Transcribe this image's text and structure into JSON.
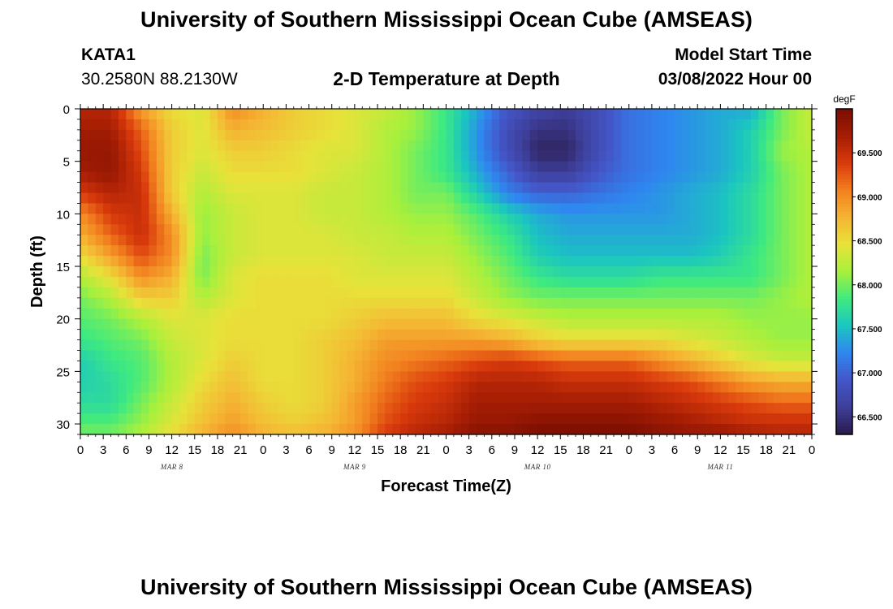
{
  "page": {
    "title": "University of Southern Mississippi Ocean Cube (AMSEAS)",
    "footer_title": "University of Southern Mississippi Ocean Cube (AMSEAS)",
    "station": "KATA1",
    "coords": "30.2580N  88.2130W",
    "subtitle": "2-D Temperature at Depth",
    "model_start_label": "Model Start Time",
    "model_start_value": "03/08/2022 Hour 00"
  },
  "chart_data": {
    "type": "heatmap",
    "title": "2-D Temperature at Depth",
    "xlabel": "Forecast Time(Z)",
    "ylabel": "Depth (ft)",
    "x_range_hours": [
      0,
      96
    ],
    "x_tick_labels": [
      "0",
      "3",
      "6",
      "9",
      "12",
      "15",
      "18",
      "21",
      "0",
      "3",
      "6",
      "9",
      "12",
      "15",
      "18",
      "21",
      "0",
      "3",
      "6",
      "9",
      "12",
      "15",
      "18",
      "21",
      "0",
      "3",
      "6",
      "9",
      "12",
      "15",
      "18",
      "21",
      "0"
    ],
    "date_labels": [
      {
        "label": "MAR 8",
        "hour": 12
      },
      {
        "label": "MAR 9",
        "hour": 36
      },
      {
        "label": "MAR 10",
        "hour": 60
      },
      {
        "label": "MAR 11",
        "hour": 84
      }
    ],
    "y_range_ft": [
      0,
      31
    ],
    "y_ticks": [
      0,
      5,
      10,
      15,
      20,
      25,
      30
    ],
    "colorbar": {
      "unit": "degF",
      "range": [
        66.3,
        70.0
      ],
      "ticks": [
        66.5,
        67.0,
        67.5,
        68.0,
        68.5,
        69.0,
        69.5
      ],
      "tick_labels": [
        "66.500",
        "67.000",
        "67.500",
        "68.000",
        "68.500",
        "69.000",
        "69.500"
      ],
      "colors": [
        "#2a1a4a",
        "#3e3f9a",
        "#4456c8",
        "#2f86f0",
        "#1bc6c0",
        "#3fea80",
        "#a8f03c",
        "#e8e23a",
        "#f5b533",
        "#f2801f",
        "#d93a0c",
        "#a51d04",
        "#7a0e02"
      ]
    },
    "grid_hours": [
      0,
      4,
      8,
      12,
      16,
      20,
      24,
      28,
      32,
      36,
      40,
      44,
      48,
      52,
      56,
      60,
      64,
      68,
      72,
      76,
      80,
      84,
      88,
      92,
      96
    ],
    "grid_depths_ft": [
      0,
      2,
      4,
      6,
      8,
      10,
      12,
      14,
      16,
      18,
      20,
      22,
      24,
      26,
      28,
      30,
      31
    ],
    "temperatures_degF": [
      [
        69.6,
        69.6,
        68.9,
        68.5,
        68.4,
        69.0,
        68.8,
        68.6,
        68.5,
        68.4,
        68.3,
        68.1,
        67.8,
        67.4,
        66.9,
        66.7,
        66.6,
        66.8,
        67.1,
        67.2,
        67.3,
        67.4,
        67.4,
        68.0,
        68.3
      ],
      [
        69.7,
        69.7,
        69.2,
        68.6,
        68.4,
        68.8,
        68.7,
        68.6,
        68.5,
        68.4,
        68.2,
        68.1,
        67.8,
        67.3,
        66.8,
        66.5,
        66.5,
        66.8,
        67.1,
        67.2,
        67.3,
        67.4,
        67.6,
        68.0,
        68.3
      ],
      [
        69.8,
        69.8,
        69.3,
        68.6,
        68.4,
        68.6,
        68.6,
        68.5,
        68.4,
        68.4,
        68.2,
        68.0,
        67.8,
        67.3,
        66.8,
        66.4,
        66.4,
        66.8,
        67.1,
        67.2,
        67.3,
        67.4,
        67.6,
        68.1,
        68.2
      ],
      [
        69.7,
        69.8,
        69.4,
        68.6,
        68.3,
        68.5,
        68.5,
        68.5,
        68.4,
        68.3,
        68.2,
        68.0,
        67.8,
        67.4,
        67.0,
        66.6,
        66.6,
        66.9,
        67.1,
        67.2,
        67.3,
        67.4,
        67.6,
        68.0,
        68.2
      ],
      [
        69.4,
        69.6,
        69.5,
        68.6,
        68.2,
        68.4,
        68.4,
        68.4,
        68.3,
        68.3,
        68.2,
        68.0,
        68.0,
        67.6,
        67.2,
        67.0,
        67.0,
        67.1,
        67.2,
        67.3,
        67.4,
        67.5,
        67.7,
        68.0,
        68.2
      ],
      [
        69.0,
        69.4,
        69.5,
        68.8,
        68.1,
        68.3,
        68.4,
        68.4,
        68.3,
        68.3,
        68.2,
        68.1,
        68.1,
        67.9,
        67.6,
        67.4,
        67.3,
        67.3,
        67.3,
        67.3,
        67.4,
        67.5,
        67.7,
        68.0,
        68.2
      ],
      [
        68.8,
        69.2,
        69.5,
        69.0,
        68.1,
        68.3,
        68.4,
        68.4,
        68.4,
        68.3,
        68.3,
        68.2,
        68.2,
        68.0,
        67.8,
        67.5,
        67.4,
        67.4,
        67.4,
        67.4,
        67.4,
        67.5,
        67.7,
        68.0,
        68.2
      ],
      [
        68.5,
        68.9,
        69.3,
        69.0,
        68.0,
        68.3,
        68.4,
        68.4,
        68.4,
        68.4,
        68.3,
        68.3,
        68.3,
        68.1,
        67.9,
        67.6,
        67.5,
        67.5,
        67.5,
        67.5,
        67.5,
        67.6,
        67.8,
        68.0,
        68.2
      ],
      [
        68.2,
        68.5,
        69.0,
        68.8,
        68.0,
        68.4,
        68.5,
        68.5,
        68.5,
        68.4,
        68.4,
        68.4,
        68.4,
        68.2,
        68.0,
        67.8,
        67.7,
        67.7,
        67.7,
        67.8,
        67.8,
        67.8,
        67.8,
        68.0,
        68.2
      ],
      [
        68.0,
        68.2,
        68.6,
        68.6,
        68.2,
        68.4,
        68.5,
        68.5,
        68.5,
        68.5,
        68.5,
        68.5,
        68.5,
        68.3,
        68.1,
        68.0,
        68.0,
        68.0,
        68.0,
        68.0,
        68.0,
        68.0,
        68.0,
        68.1,
        68.2
      ],
      [
        67.9,
        68.0,
        68.2,
        68.4,
        68.4,
        68.5,
        68.5,
        68.5,
        68.5,
        68.6,
        68.7,
        68.7,
        68.7,
        68.5,
        68.4,
        68.3,
        68.2,
        68.2,
        68.2,
        68.2,
        68.2,
        68.2,
        68.1,
        68.1,
        68.1
      ],
      [
        67.8,
        67.9,
        68.0,
        68.3,
        68.4,
        68.5,
        68.5,
        68.5,
        68.6,
        68.7,
        68.9,
        68.9,
        68.9,
        68.9,
        68.8,
        68.6,
        68.5,
        68.5,
        68.5,
        68.5,
        68.4,
        68.3,
        68.2,
        68.1,
        68.1
      ],
      [
        67.6,
        67.8,
        67.9,
        68.2,
        68.4,
        68.6,
        68.5,
        68.5,
        68.6,
        68.8,
        69.0,
        69.1,
        69.2,
        69.3,
        69.4,
        69.3,
        69.2,
        69.2,
        69.2,
        69.0,
        68.8,
        68.6,
        68.4,
        68.3,
        68.3
      ],
      [
        67.6,
        67.7,
        67.9,
        68.2,
        68.5,
        68.7,
        68.5,
        68.5,
        68.6,
        68.8,
        69.1,
        69.3,
        69.4,
        69.6,
        69.6,
        69.6,
        69.5,
        69.5,
        69.5,
        69.4,
        69.3,
        69.1,
        68.9,
        68.8,
        68.8
      ],
      [
        67.7,
        67.7,
        68.0,
        68.3,
        68.6,
        68.8,
        68.6,
        68.5,
        68.6,
        68.9,
        69.2,
        69.4,
        69.5,
        69.7,
        69.7,
        69.7,
        69.7,
        69.7,
        69.7,
        69.6,
        69.5,
        69.4,
        69.3,
        69.2,
        69.2
      ],
      [
        67.9,
        67.9,
        68.1,
        68.4,
        68.7,
        68.9,
        68.7,
        68.6,
        68.7,
        68.9,
        69.3,
        69.5,
        69.6,
        69.8,
        69.8,
        69.9,
        69.9,
        69.9,
        69.9,
        69.8,
        69.7,
        69.6,
        69.5,
        69.5,
        69.5
      ],
      [
        68.0,
        68.0,
        68.2,
        68.5,
        68.8,
        69.0,
        68.8,
        68.7,
        68.8,
        69.0,
        69.4,
        69.6,
        69.7,
        69.9,
        69.9,
        70.0,
        70.0,
        70.0,
        70.0,
        69.9,
        69.8,
        69.8,
        69.7,
        69.6,
        69.6
      ]
    ]
  }
}
